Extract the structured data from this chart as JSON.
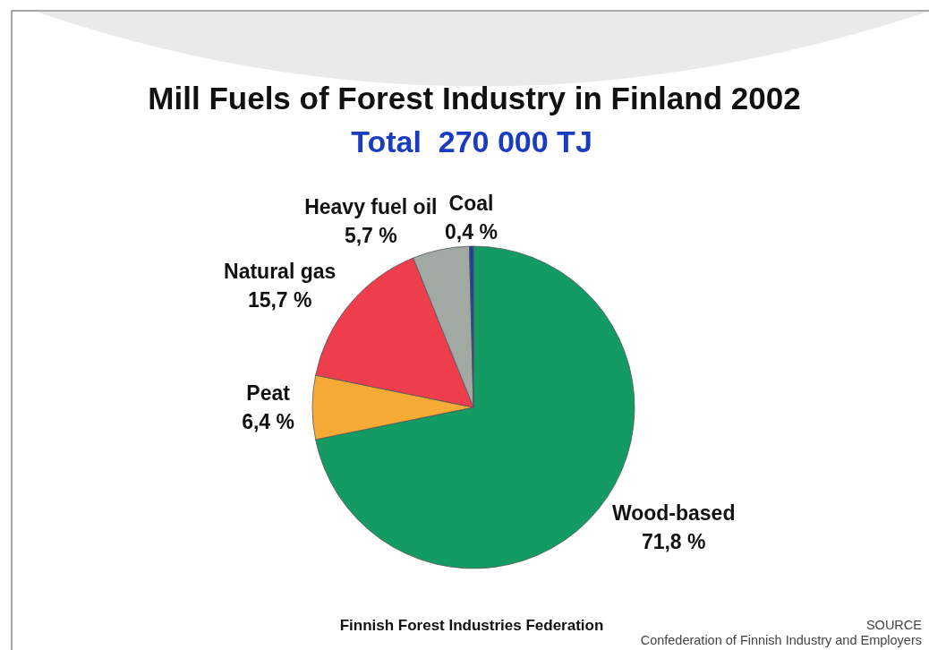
{
  "chart_data": {
    "type": "pie",
    "title": "Mill Fuels of Forest Industry in Finland 2002",
    "subtitle": "Total  270 000 TJ",
    "categories": [
      "Wood-based",
      "Peat",
      "Natural gas",
      "Heavy fuel oil",
      "Coal"
    ],
    "values": [
      71.8,
      6.4,
      15.7,
      5.7,
      0.4
    ],
    "colors": [
      "#139b63",
      "#f5ab35",
      "#ee3e4e",
      "#a2a8a2",
      "#1d3fa5"
    ],
    "value_labels": [
      "71,8 %",
      "6,4 %",
      "15,7 %",
      "5,7 %",
      "0,4 %"
    ],
    "annotations": [
      "Finnish Forest Industries Federation",
      "SOURCE",
      "Confederation of Finnish Industry and Employers"
    ]
  }
}
